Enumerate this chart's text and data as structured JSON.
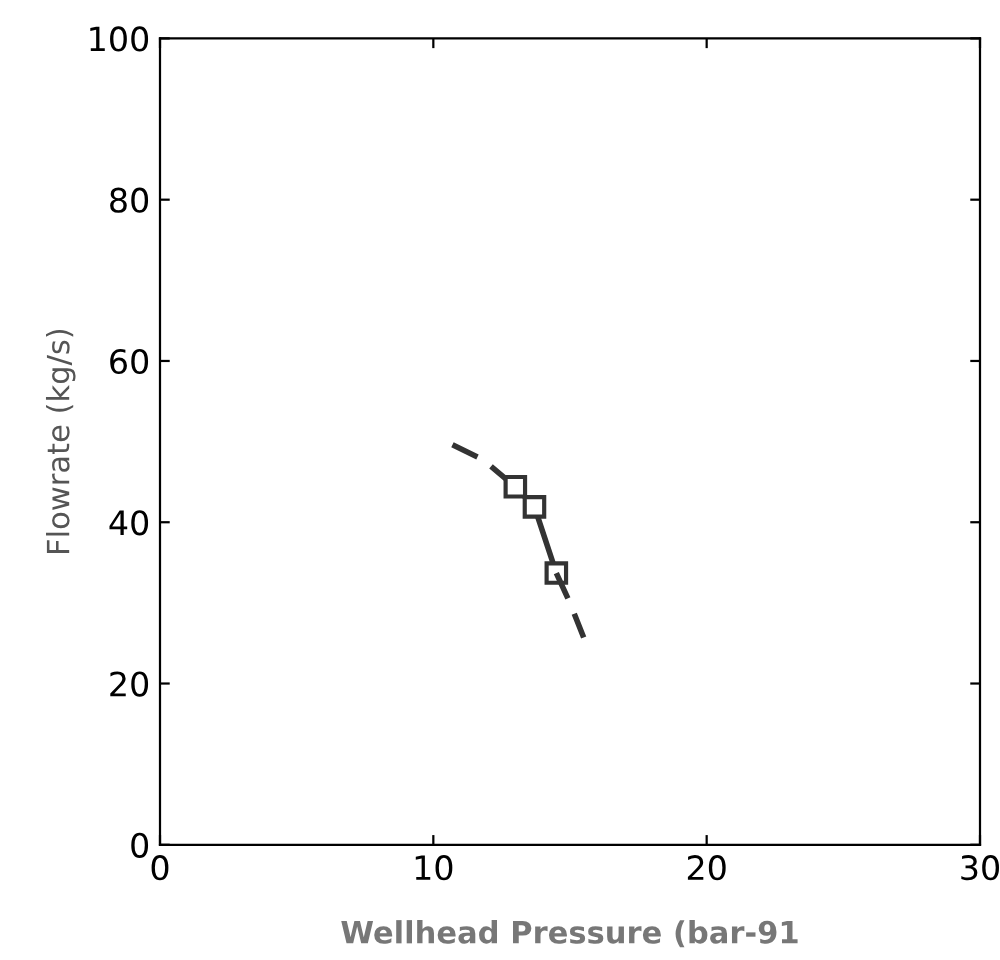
{
  "chart_data": {
    "type": "line",
    "xlabel": "Wellhead Pressure (bar-91",
    "ylabel": "Flowrate (kg/s)",
    "xlim": [
      0,
      30
    ],
    "ylim": [
      0,
      100
    ],
    "xticks": [
      0,
      10,
      20,
      30
    ],
    "yticks": [
      0,
      20,
      40,
      60,
      80,
      100
    ],
    "grid": false,
    "series": [
      {
        "color": "#333333",
        "line_style": "dashed",
        "marker": "none",
        "x": [
          10.7,
          11.8,
          13.0
        ],
        "values": [
          49.6,
          47.8,
          44.4
        ]
      },
      {
        "color": "#333333",
        "line_style": "solid",
        "marker": "square",
        "x": [
          13.0,
          13.7,
          14.5
        ],
        "values": [
          44.4,
          41.9,
          33.7
        ]
      },
      {
        "color": "#333333",
        "line_style": "dashed",
        "marker": "none",
        "x": [
          14.5,
          15.0,
          15.5
        ],
        "values": [
          33.7,
          30.0,
          25.7
        ]
      }
    ]
  }
}
